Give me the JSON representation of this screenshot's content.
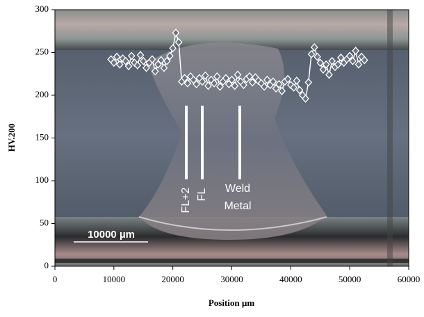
{
  "chart_data": {
    "type": "line",
    "xlabel": "Position µm",
    "ylabel": "HV.200",
    "annotations": [
      "FL+2",
      "FL",
      "Weld",
      "Metal",
      "10000 µm"
    ],
    "xlim": [
      0,
      60000
    ],
    "xticks": [
      0,
      10000,
      20000,
      30000,
      40000,
      50000,
      60000
    ],
    "ylim": [
      0,
      300
    ],
    "yticks": [
      0,
      50,
      100,
      150,
      200,
      250,
      300
    ],
    "color": "#ffffff",
    "marker": "diamond",
    "x": [
      9500,
      10000,
      10500,
      11000,
      11500,
      12000,
      12500,
      13000,
      13500,
      14000,
      14500,
      15000,
      15500,
      16000,
      16500,
      17000,
      17500,
      18000,
      18500,
      19000,
      19500,
      20000,
      20500,
      21000,
      21500,
      22000,
      22500,
      23000,
      23500,
      24000,
      24500,
      25000,
      25500,
      26000,
      26500,
      27000,
      27500,
      28000,
      28500,
      29000,
      29500,
      30000,
      30500,
      31000,
      31500,
      32000,
      32500,
      33000,
      33500,
      34000,
      34500,
      35000,
      35500,
      36000,
      36500,
      37000,
      37500,
      38000,
      38500,
      39000,
      39500,
      40000,
      40500,
      41000,
      41500,
      42000,
      42500,
      43000,
      43500,
      44000,
      44500,
      45000,
      45500,
      46000,
      46500,
      47000,
      47500,
      48000,
      48500,
      49000,
      49500,
      50000,
      50500,
      51000,
      51500,
      52000,
      52500
    ],
    "values": [
      242,
      238,
      245,
      236,
      243,
      240,
      234,
      246,
      238,
      235,
      247,
      240,
      232,
      238,
      242,
      228,
      236,
      241,
      232,
      240,
      246,
      255,
      273,
      262,
      216,
      220,
      214,
      222,
      218,
      213,
      220,
      216,
      223,
      211,
      218,
      214,
      222,
      210,
      216,
      220,
      213,
      218,
      211,
      224,
      216,
      212,
      219,
      222,
      215,
      221,
      217,
      214,
      210,
      218,
      212,
      216,
      208,
      213,
      205,
      216,
      219,
      212,
      209,
      217,
      206,
      200,
      196,
      215,
      248,
      256,
      245,
      238,
      230,
      236,
      224,
      240,
      233,
      236,
      244,
      238,
      242,
      246,
      240,
      252,
      236,
      245,
      241
    ]
  }
}
